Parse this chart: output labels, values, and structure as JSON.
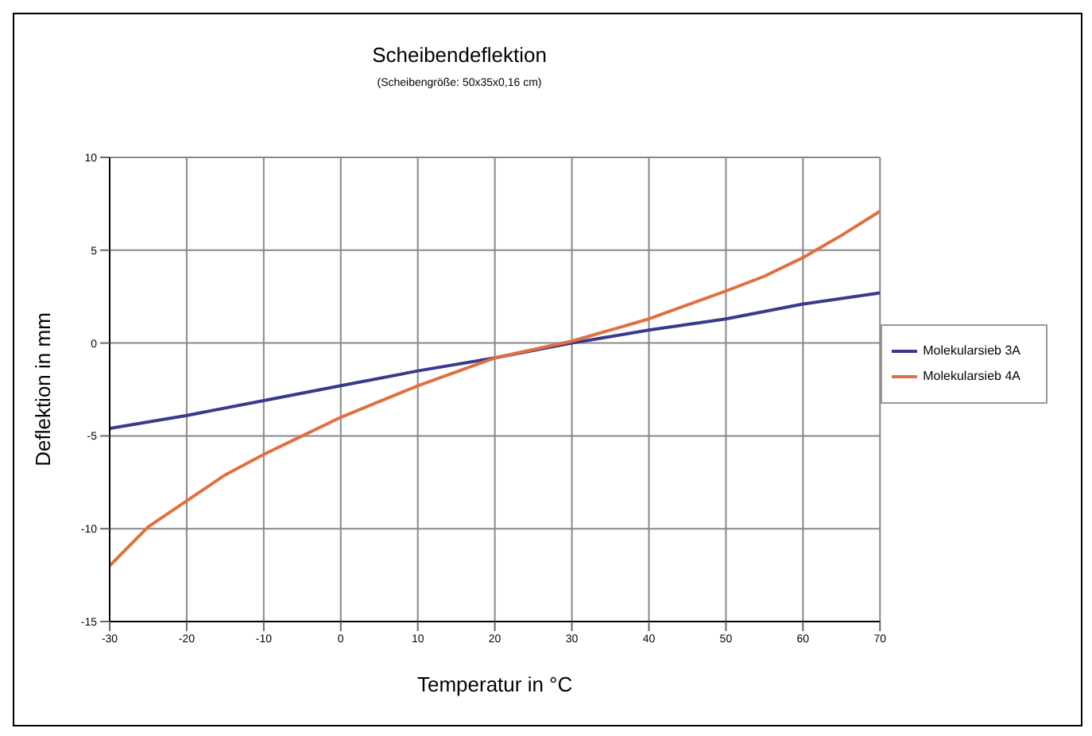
{
  "chart_data": {
    "type": "line",
    "title": "Scheibendeflektion",
    "subtitle": "(Scheibengröße: 50x35x0,16 cm)",
    "xlabel": "Temperatur in °C",
    "ylabel": "Deflektion in mm",
    "xlim": [
      -30,
      70
    ],
    "xticks": [
      -30,
      -20,
      -10,
      0,
      10,
      20,
      30,
      40,
      50,
      60,
      70
    ],
    "ylim": [
      -15,
      10
    ],
    "yticks": [
      -15,
      -10,
      -5,
      0,
      5,
      10
    ],
    "grid": true,
    "legend": "right",
    "marker": "none",
    "line_style": "solid",
    "series": [
      {
        "name": "Molekularsieb 3A",
        "color": "#3a3a8c",
        "x": [
          -30,
          -20,
          -10,
          0,
          10,
          20,
          30,
          40,
          50,
          60,
          70
        ],
        "values": [
          -4.6,
          -3.9,
          -3.1,
          -2.3,
          -1.5,
          -0.8,
          0,
          0.7,
          1.3,
          2.1,
          2.7
        ]
      },
      {
        "name": "Molekularsieb 4A",
        "color": "#e07040",
        "x": [
          -30,
          -25,
          -20,
          -15,
          -10,
          -5,
          0,
          10,
          20,
          30,
          40,
          50,
          55,
          60,
          65,
          70
        ],
        "values": [
          -12.0,
          -9.9,
          -8.5,
          -7.1,
          -6.0,
          -5.0,
          -4.0,
          -2.3,
          -0.8,
          0.1,
          1.3,
          2.8,
          3.6,
          4.6,
          5.8,
          7.1
        ]
      }
    ]
  }
}
